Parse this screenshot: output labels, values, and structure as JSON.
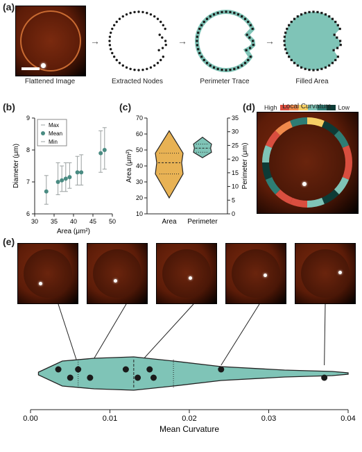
{
  "a": {
    "label": "(a)",
    "stages": [
      "Flattened Image",
      "Extracted Nodes",
      "Perimeter Trace",
      "Filled Area"
    ],
    "fill_color": "#7fc4b7",
    "node_color": "#1a1a1a",
    "afm_colors": {
      "center": "#7a2a0f",
      "mid": "#5c1c08",
      "edge": "#2a0c03",
      "bg": "#000"
    },
    "scalebar_color": "#ffffff",
    "arrow_glyph": "→"
  },
  "b": {
    "label": "(b)",
    "xlabel": "Area (μm²)",
    "ylabel": "Diameter (μm)",
    "xlim": [
      30,
      50
    ],
    "xticks": [
      30,
      35,
      40,
      45,
      50
    ],
    "ylim": [
      6,
      9
    ],
    "yticks": [
      6,
      7,
      8,
      9
    ],
    "legend": [
      "Max",
      "Mean",
      "Min"
    ],
    "marker_color": "#4a8b82",
    "err_color": "#9aa0a0",
    "points": [
      {
        "x": 33,
        "min": 6.3,
        "mean": 6.7,
        "max": 7.2
      },
      {
        "x": 36,
        "min": 6.6,
        "mean": 7.0,
        "max": 7.6
      },
      {
        "x": 37,
        "min": 6.7,
        "mean": 7.05,
        "max": 7.5
      },
      {
        "x": 38,
        "min": 6.7,
        "mean": 7.1,
        "max": 7.6
      },
      {
        "x": 39,
        "min": 6.8,
        "mean": 7.15,
        "max": 7.6
      },
      {
        "x": 41,
        "min": 6.9,
        "mean": 7.3,
        "max": 7.8
      },
      {
        "x": 42,
        "min": 6.9,
        "mean": 7.3,
        "max": 7.85
      },
      {
        "x": 47,
        "min": 7.3,
        "mean": 7.9,
        "max": 8.6
      },
      {
        "x": 48,
        "min": 7.4,
        "mean": 8.0,
        "max": 8.7
      }
    ]
  },
  "c": {
    "label": "(c)",
    "ylabel_left": "Area (μm²)",
    "ylabel_right": "Perimeter (μm)",
    "cats": [
      "Area",
      "Perimeter"
    ],
    "left": {
      "ylim": [
        10,
        70
      ],
      "yticks": [
        10,
        20,
        30,
        40,
        50,
        60,
        70
      ]
    },
    "right": {
      "ylim": [
        0,
        35
      ],
      "yticks": [
        0,
        5,
        10,
        15,
        20,
        25,
        30,
        35
      ]
    },
    "area_violin": {
      "color": "#e8b254",
      "min": 20,
      "q1": 35,
      "med": 42,
      "q3": 48,
      "max": 62,
      "width": 0.45
    },
    "perim_violin": {
      "color": "#7fc4b7",
      "min": 20.5,
      "q1": 22.5,
      "med": 24,
      "q3": 25.5,
      "max": 28,
      "width": 0.3
    }
  },
  "d": {
    "label": "(d)",
    "title": "Local Curvature",
    "high": "High",
    "low": "Low",
    "cmap": [
      "#d94e3f",
      "#f08a4b",
      "#f6cf65",
      "#7fc4b7",
      "#2e7d74",
      "#0d3b36"
    ]
  },
  "e": {
    "label": "(e)",
    "xlabel": "Mean Curvature",
    "xlim": [
      0,
      0.04
    ],
    "xticks": [
      0.0,
      0.01,
      0.02,
      0.03,
      0.04
    ],
    "violin_color": "#7fc4b7",
    "points_x": [
      0.0035,
      0.005,
      0.006,
      0.0075,
      0.012,
      0.0135,
      0.015,
      0.0155,
      0.024,
      0.037
    ],
    "callouts": [
      0.006,
      0.0075,
      0.0135,
      0.024,
      0.037
    ]
  }
}
